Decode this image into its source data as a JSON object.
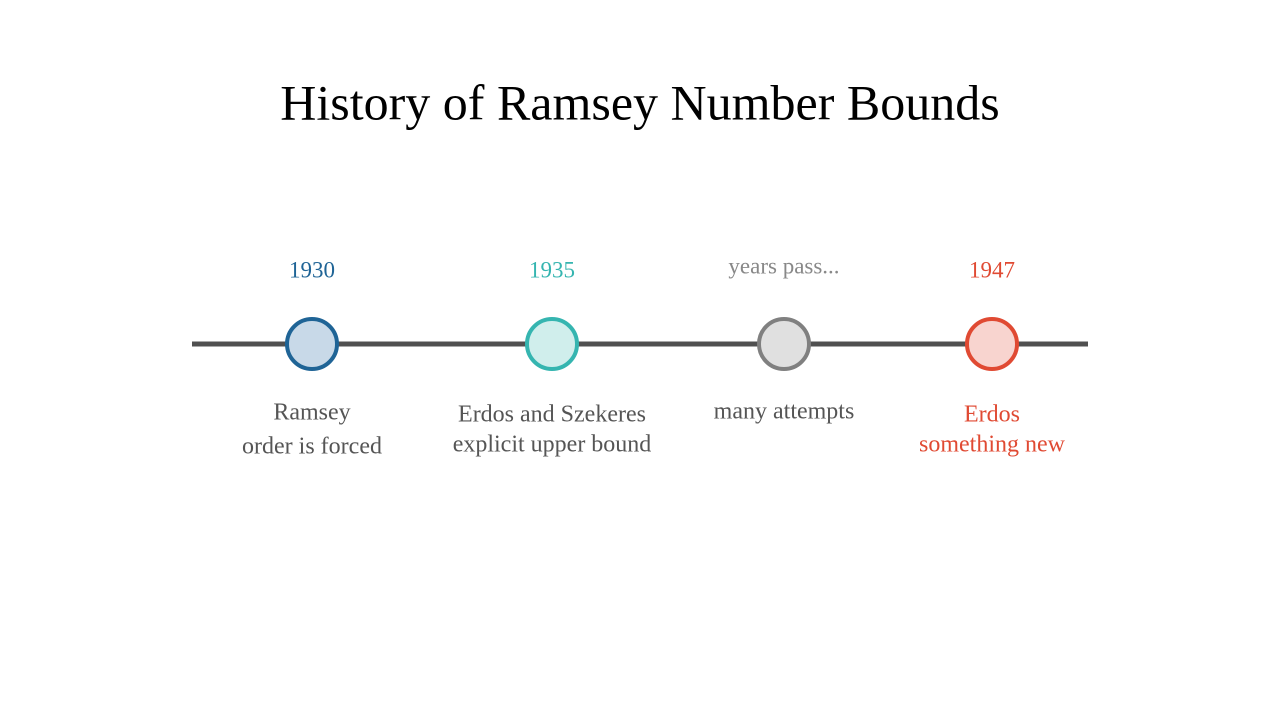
{
  "title": "History of Ramsey Number Bounds",
  "events": [
    {
      "label": "1930",
      "lines": [
        "Ramsey",
        "order is forced"
      ]
    },
    {
      "label": "1935",
      "lines": [
        "Erdos and Szekeres",
        "explicit upper bound"
      ]
    },
    {
      "label": "years pass...",
      "lines": [
        "many attempts"
      ]
    },
    {
      "label": "1947",
      "lines": [
        "Erdos",
        "something new"
      ]
    }
  ]
}
